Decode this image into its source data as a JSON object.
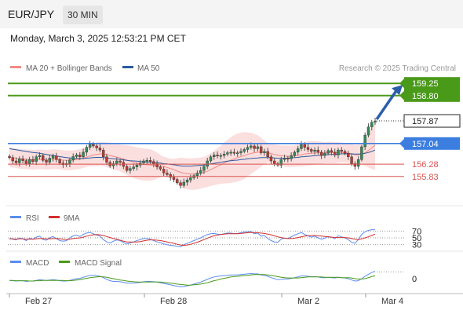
{
  "header": {
    "pair": "EUR/JPY",
    "timeframe": "30 MIN"
  },
  "datetime": "Monday, March 3, 2025 12:53:21 PM CET",
  "legend": {
    "ma20_bb": "MA 20 + Bollinger Bands",
    "ma50": "MA 50",
    "copyright": "Research © 2025 Trading Central",
    "rsi": "RSI",
    "ma9": "9MA",
    "macd": "MACD",
    "macd_signal": "MACD Signal"
  },
  "colors": {
    "green_level": "#4a9a1a",
    "blue_level": "#3c7ee0",
    "red_level": "#d9534f",
    "current_box": "#222222",
    "arrow": "#2b5ea8",
    "bull": "#2e8b57",
    "bear": "#c0392b",
    "bb_fill": "#fad3d3",
    "ma20": "#f28b82",
    "ma50": "#2c5aa0",
    "rsi": "#5b8def",
    "rsi_ma": "#d32f2f",
    "macd": "#5b8def",
    "macd_signal": "#4a9a1a"
  },
  "chart_data": {
    "type": "candlestick",
    "symbol": "EUR/JPY",
    "interval": "30 MIN",
    "price_levels": [
      {
        "label": "159.25",
        "value": 159.25,
        "kind": "target",
        "color": "green"
      },
      {
        "label": "158.80",
        "value": 158.8,
        "kind": "target",
        "color": "green"
      },
      {
        "label": "157.87",
        "value": 157.87,
        "kind": "current",
        "color": "black"
      },
      {
        "label": "157.04",
        "value": 157.04,
        "kind": "pivot",
        "color": "blue"
      },
      {
        "label": "156.28",
        "value": 156.28,
        "kind": "support",
        "color": "red"
      },
      {
        "label": "155.83",
        "value": 155.83,
        "kind": "support",
        "color": "red"
      }
    ],
    "y_range": [
      154.9,
      159.4
    ],
    "x_labels": [
      "Feb 27",
      "Feb 28",
      "Mar 2",
      "Mar 4"
    ],
    "closes": [
      156.52,
      156.4,
      156.33,
      156.48,
      156.41,
      156.3,
      156.45,
      156.38,
      156.55,
      156.6,
      156.42,
      156.35,
      156.5,
      156.58,
      156.45,
      156.32,
      156.26,
      156.3,
      156.44,
      156.56,
      156.62,
      156.55,
      156.72,
      156.9,
      157.02,
      156.95,
      156.88,
      156.8,
      156.55,
      156.35,
      156.22,
      156.3,
      156.4,
      156.35,
      156.2,
      156.05,
      156.12,
      156.18,
      156.25,
      156.32,
      156.4,
      156.42,
      156.38,
      156.3,
      156.18,
      156.1,
      155.96,
      155.9,
      155.8,
      155.72,
      155.6,
      155.5,
      155.62,
      155.7,
      155.78,
      155.86,
      155.95,
      156.05,
      156.2,
      156.4,
      156.55,
      156.62,
      156.58,
      156.6,
      156.65,
      156.7,
      156.72,
      156.68,
      156.7,
      156.75,
      156.82,
      156.9,
      156.95,
      156.85,
      156.92,
      156.7,
      156.75,
      156.55,
      156.4,
      156.3,
      156.25,
      156.45,
      156.5,
      156.48,
      156.6,
      156.72,
      156.85,
      157.0,
      156.9,
      156.82,
      156.75,
      156.8,
      156.72,
      156.6,
      156.68,
      156.78,
      156.72,
      156.62,
      156.8,
      156.75,
      156.68,
      156.55,
      156.3,
      156.2,
      156.45,
      156.92,
      157.35,
      157.65,
      157.82,
      157.87
    ],
    "ma20": [
      156.55,
      156.52,
      156.5,
      156.48,
      156.47,
      156.46,
      156.45,
      156.44,
      156.45,
      156.46,
      156.45,
      156.44,
      156.45,
      156.46,
      156.46,
      156.45,
      156.43,
      156.42,
      156.42,
      156.43,
      156.45,
      156.47,
      156.5,
      156.54,
      156.58,
      156.62,
      156.64,
      156.66,
      156.65,
      156.63,
      156.6,
      156.57,
      156.54,
      156.51,
      156.47,
      156.43,
      156.39,
      156.35,
      156.32,
      156.29,
      156.27,
      156.26,
      156.25,
      156.24,
      156.23,
      156.21,
      156.19,
      156.16,
      156.12,
      156.08,
      156.03,
      155.98,
      155.95,
      155.93,
      155.92,
      155.92,
      155.93,
      155.95,
      155.98,
      156.02,
      156.08,
      156.14,
      156.2,
      156.26,
      156.32,
      156.38,
      156.43,
      156.48,
      156.52,
      156.56,
      156.6,
      156.64,
      156.68,
      156.7,
      156.72,
      156.72,
      156.71,
      156.7,
      156.67,
      156.64,
      156.61,
      156.59,
      156.58,
      156.57,
      156.57,
      156.58,
      156.6,
      156.63,
      156.65,
      156.67,
      156.68,
      156.69,
      156.7,
      156.7,
      156.7,
      156.71,
      156.71,
      156.7,
      156.71,
      156.71,
      156.7,
      156.69,
      156.66,
      156.63,
      156.62,
      156.65,
      156.7,
      156.78,
      156.88,
      156.98
    ],
    "ma50": [
      156.85,
      156.83,
      156.81,
      156.79,
      156.77,
      156.75,
      156.73,
      156.71,
      156.7,
      156.68,
      156.66,
      156.64,
      156.62,
      156.6,
      156.58,
      156.56,
      156.54,
      156.52,
      156.51,
      156.5,
      156.49,
      156.49,
      156.49,
      156.5,
      156.51,
      156.52,
      156.53,
      156.53,
      156.52,
      156.51,
      156.49,
      156.48,
      156.47,
      156.46,
      156.44,
      156.42,
      156.41,
      156.4,
      156.39,
      156.38,
      156.37,
      156.36,
      156.35,
      156.34,
      156.33,
      156.32,
      156.3,
      156.29,
      156.27,
      156.26,
      156.24,
      156.22,
      156.21,
      156.21,
      156.21,
      156.22,
      156.23,
      156.24,
      156.25,
      156.27,
      156.29,
      156.31,
      156.33,
      156.35,
      156.37,
      156.39,
      156.41,
      156.42,
      156.43,
      156.45,
      156.46,
      156.48,
      156.49,
      156.5,
      156.51,
      156.52,
      156.52,
      156.52,
      156.52,
      156.51,
      156.5,
      156.5,
      156.5,
      156.5,
      156.51,
      156.52,
      156.53,
      156.55,
      156.56,
      156.57,
      156.58,
      156.59,
      156.6,
      156.61,
      156.62,
      156.63,
      156.64,
      156.64,
      156.65,
      156.66,
      156.66,
      156.66,
      156.66,
      156.65,
      156.65,
      156.66,
      156.68,
      156.71,
      156.75,
      156.8
    ],
    "rsi": {
      "levels": [
        70,
        50,
        30
      ],
      "rsi": [
        48,
        46,
        44,
        50,
        47,
        42,
        49,
        46,
        52,
        55,
        45,
        43,
        50,
        54,
        48,
        42,
        40,
        42,
        50,
        56,
        58,
        54,
        60,
        64,
        66,
        62,
        58,
        55,
        45,
        38,
        35,
        40,
        44,
        42,
        36,
        32,
        35,
        38,
        42,
        45,
        48,
        48,
        46,
        42,
        38,
        36,
        32,
        30,
        28,
        27,
        25,
        24,
        30,
        34,
        38,
        42,
        46,
        50,
        55,
        60,
        62,
        63,
        61,
        60,
        62,
        64,
        64,
        62,
        63,
        65,
        67,
        68,
        69,
        62,
        64,
        55,
        57,
        48,
        42,
        38,
        37,
        46,
        49,
        48,
        53,
        58,
        62,
        66,
        60,
        56,
        52,
        55,
        50,
        46,
        49,
        54,
        52,
        48,
        56,
        53,
        50,
        45,
        37,
        34,
        45,
        60,
        68,
        72,
        74,
        74
      ],
      "ma9": [
        47,
        47,
        46,
        47,
        47,
        46,
        46,
        46,
        47,
        48,
        48,
        47,
        47,
        48,
        48,
        47,
        46,
        45,
        46,
        48,
        49,
        50,
        52,
        55,
        57,
        59,
        60,
        59,
        57,
        54,
        51,
        48,
        46,
        43,
        40,
        38,
        38,
        38,
        38,
        39,
        41,
        43,
        44,
        44,
        43,
        42,
        40,
        38,
        36,
        34,
        31,
        29,
        28,
        29,
        31,
        34,
        37,
        41,
        45,
        49,
        53,
        56,
        58,
        60,
        61,
        62,
        62,
        62,
        62,
        63,
        64,
        65,
        66,
        65,
        65,
        64,
        63,
        61,
        59,
        56,
        53,
        51,
        49,
        48,
        48,
        49,
        51,
        53,
        55,
        56,
        57,
        57,
        56,
        55,
        54,
        53,
        52,
        51,
        51,
        51,
        51,
        50,
        48,
        46,
        45,
        47,
        50,
        53,
        57,
        61
      ]
    },
    "macd": {
      "zero_label": "0",
      "macd": [
        -0.05,
        -0.06,
        -0.07,
        -0.06,
        -0.06,
        -0.08,
        -0.07,
        -0.07,
        -0.05,
        -0.03,
        -0.04,
        -0.05,
        -0.04,
        -0.03,
        -0.04,
        -0.06,
        -0.07,
        -0.07,
        -0.05,
        -0.02,
        0.0,
        0.01,
        0.04,
        0.07,
        0.1,
        0.1,
        0.09,
        0.07,
        0.03,
        -0.02,
        -0.06,
        -0.08,
        -0.08,
        -0.09,
        -0.11,
        -0.13,
        -0.13,
        -0.13,
        -0.12,
        -0.11,
        -0.09,
        -0.08,
        -0.08,
        -0.09,
        -0.1,
        -0.12,
        -0.14,
        -0.16,
        -0.18,
        -0.2,
        -0.22,
        -0.24,
        -0.23,
        -0.21,
        -0.19,
        -0.16,
        -0.13,
        -0.1,
        -0.06,
        -0.02,
        0.02,
        0.05,
        0.07,
        0.08,
        0.09,
        0.1,
        0.11,
        0.11,
        0.11,
        0.12,
        0.13,
        0.14,
        0.15,
        0.14,
        0.14,
        0.11,
        0.1,
        0.07,
        0.03,
        -0.0,
        -0.03,
        -0.02,
        -0.01,
        -0.01,
        0.01,
        0.03,
        0.05,
        0.08,
        0.08,
        0.07,
        0.06,
        0.06,
        0.05,
        0.03,
        0.03,
        0.04,
        0.03,
        0.02,
        0.04,
        0.03,
        0.02,
        0.0,
        -0.04,
        -0.07,
        -0.06,
        0.0,
        0.07,
        0.13,
        0.18,
        0.22
      ],
      "signal": [
        -0.05,
        -0.05,
        -0.06,
        -0.06,
        -0.06,
        -0.06,
        -0.07,
        -0.07,
        -0.06,
        -0.06,
        -0.05,
        -0.05,
        -0.05,
        -0.05,
        -0.05,
        -0.05,
        -0.05,
        -0.06,
        -0.06,
        -0.05,
        -0.04,
        -0.03,
        -0.01,
        0.01,
        0.03,
        0.04,
        0.05,
        0.06,
        0.05,
        0.04,
        0.02,
        0.0,
        -0.02,
        -0.04,
        -0.05,
        -0.07,
        -0.08,
        -0.09,
        -0.1,
        -0.1,
        -0.1,
        -0.1,
        -0.1,
        -0.1,
        -0.1,
        -0.1,
        -0.11,
        -0.12,
        -0.13,
        -0.14,
        -0.16,
        -0.17,
        -0.18,
        -0.19,
        -0.19,
        -0.18,
        -0.17,
        -0.16,
        -0.14,
        -0.12,
        -0.09,
        -0.06,
        -0.04,
        -0.01,
        0.01,
        0.03,
        0.05,
        0.06,
        0.07,
        0.08,
        0.09,
        0.1,
        0.11,
        0.12,
        0.12,
        0.12,
        0.12,
        0.11,
        0.1,
        0.08,
        0.06,
        0.04,
        0.03,
        0.02,
        0.02,
        0.02,
        0.02,
        0.03,
        0.04,
        0.05,
        0.05,
        0.05,
        0.05,
        0.05,
        0.04,
        0.04,
        0.04,
        0.04,
        0.04,
        0.03,
        0.03,
        0.03,
        0.02,
        0.0,
        -0.01,
        -0.01,
        0.0,
        0.03,
        0.06,
        0.09
      ]
    }
  }
}
